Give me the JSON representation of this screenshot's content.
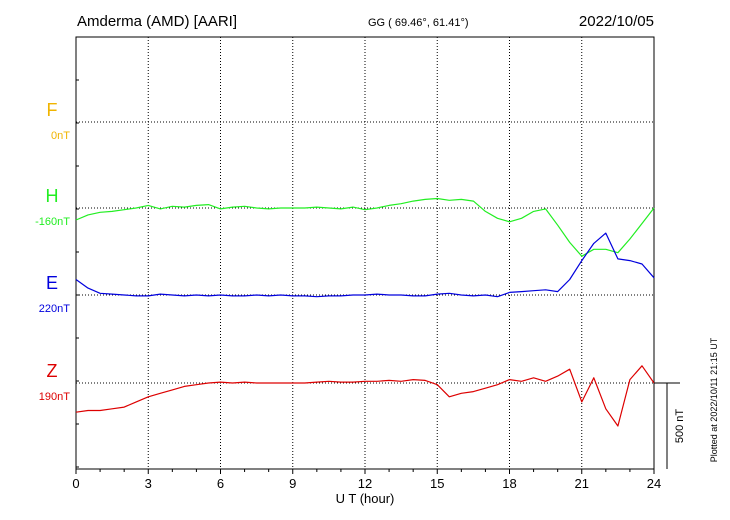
{
  "header": {
    "station": "Amderma (AMD)  [AARI]",
    "coords": "GG ( 69.46°,  61.41°)",
    "date": "2022/10/05"
  },
  "side_note": "Plotted at 2022/10/11 21:15 UT",
  "scale_label": "500 nT",
  "chart_data": {
    "type": "line",
    "xlabel": "U T (hour)",
    "xlim": [
      0,
      24
    ],
    "x_ticks": [
      "0",
      "3",
      "6",
      "9",
      "12",
      "15",
      "18",
      "21",
      "24"
    ],
    "grid": true,
    "y_scale_bar_nT": 500,
    "series": [
      {
        "name": "F",
        "offset_label": "0nT",
        "color": "#f0b400",
        "x": [],
        "y": []
      },
      {
        "name": "H",
        "offset_label": "-160nT",
        "color": "#22ee22",
        "x": [
          0,
          0.5,
          1,
          1.5,
          2,
          2.5,
          3,
          3.5,
          4,
          4.5,
          5,
          5.5,
          6,
          6.5,
          7,
          7.5,
          8,
          8.5,
          9,
          9.5,
          10,
          10.5,
          11,
          11.5,
          12,
          12.5,
          13,
          13.5,
          14,
          14.5,
          15,
          15.5,
          16,
          16.5,
          17,
          17.5,
          18,
          18.5,
          19,
          19.5,
          20,
          20.5,
          21,
          21.5,
          22,
          22.5,
          23,
          23.5,
          24
        ],
        "y": [
          -70,
          -40,
          -25,
          -20,
          -10,
          0,
          15,
          -5,
          10,
          5,
          15,
          20,
          -5,
          5,
          10,
          0,
          -5,
          0,
          0,
          0,
          5,
          0,
          -5,
          5,
          -10,
          0,
          15,
          25,
          40,
          50,
          55,
          45,
          50,
          40,
          -20,
          -60,
          -80,
          -60,
          -20,
          -5,
          -100,
          -200,
          -280,
          -240,
          -240,
          -260,
          -180,
          -90,
          0
        ]
      },
      {
        "name": "E",
        "offset_label": "220nT",
        "color": "#0000dd",
        "x": [
          0,
          0.5,
          1,
          1.5,
          2,
          2.5,
          3,
          3.5,
          4,
          4.5,
          5,
          5.5,
          6,
          6.5,
          7,
          7.5,
          8,
          8.5,
          9,
          9.5,
          10,
          10.5,
          11,
          11.5,
          12,
          12.5,
          13,
          13.5,
          14,
          14.5,
          15,
          15.5,
          16,
          16.5,
          17,
          17.5,
          18,
          18.5,
          19,
          19.5,
          20,
          20.5,
          21,
          21.5,
          22,
          22.5,
          23,
          23.5,
          24
        ],
        "y": [
          90,
          40,
          10,
          5,
          0,
          -5,
          -5,
          5,
          0,
          -5,
          0,
          -5,
          0,
          -5,
          -5,
          0,
          -5,
          0,
          -5,
          -5,
          -10,
          -5,
          -5,
          0,
          0,
          5,
          0,
          0,
          -5,
          -5,
          5,
          10,
          0,
          -5,
          0,
          -10,
          15,
          20,
          25,
          30,
          20,
          90,
          200,
          300,
          360,
          210,
          200,
          180,
          100
        ]
      },
      {
        "name": "Z",
        "offset_label": "190nT",
        "color": "#dd0000",
        "x": [
          0,
          0.5,
          1,
          1.5,
          2,
          2.5,
          3,
          3.5,
          4,
          4.5,
          5,
          5.5,
          6,
          6.5,
          7,
          7.5,
          8,
          8.5,
          9,
          9.5,
          10,
          10.5,
          11,
          11.5,
          12,
          12.5,
          13,
          13.5,
          14,
          14.5,
          15,
          15.5,
          16,
          16.5,
          17,
          17.5,
          18,
          18.5,
          19,
          19.5,
          20,
          20.5,
          21,
          21.5,
          22,
          22.5,
          23,
          23.5,
          24
        ],
        "y": [
          -170,
          -160,
          -160,
          -150,
          -140,
          -110,
          -80,
          -60,
          -40,
          -20,
          -10,
          0,
          5,
          0,
          5,
          0,
          0,
          0,
          0,
          0,
          5,
          10,
          5,
          5,
          10,
          10,
          15,
          10,
          20,
          15,
          -10,
          -80,
          -60,
          -50,
          -30,
          -10,
          20,
          10,
          30,
          10,
          40,
          80,
          -110,
          30,
          -150,
          -250,
          20,
          100,
          0
        ]
      }
    ]
  }
}
